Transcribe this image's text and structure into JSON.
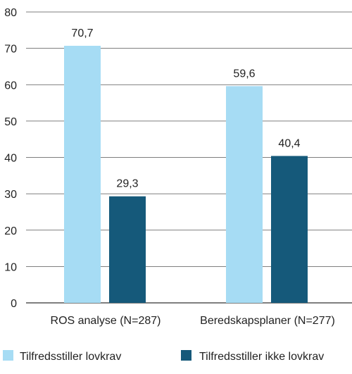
{
  "chart_data": {
    "type": "bar",
    "categories": [
      "ROS analyse (N=287)",
      "Beredskapsplaner (N=277)"
    ],
    "series": [
      {
        "name": "Tilfredsstiller lovkrav",
        "values": [
          70.7,
          59.6
        ],
        "labels": [
          "70,7",
          "59,6"
        ],
        "color": "#a6dcf4"
      },
      {
        "name": "Tilfredsstiller ikke lovkrav",
        "values": [
          29.3,
          40.4
        ],
        "labels": [
          "29,3",
          "40,4"
        ],
        "color": "#15597a"
      }
    ],
    "ylim": [
      0,
      80
    ],
    "yticks": [
      0,
      10,
      20,
      30,
      40,
      50,
      60,
      70,
      80
    ],
    "grid": true,
    "legend": "bottom",
    "title": "",
    "xlabel": "",
    "ylabel": ""
  }
}
